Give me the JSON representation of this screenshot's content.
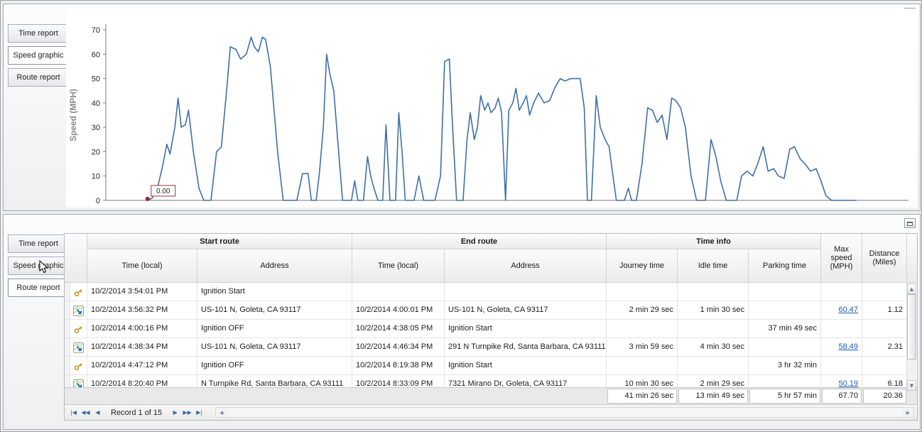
{
  "colors": {
    "chart_line": "#3E6FA8",
    "link": "#1D5BB8",
    "annotation_border": "#9C3434",
    "annotation_dot": "#8B2B2B",
    "key_icon_gold": "#C49A2C",
    "route_icon_green": "#7FA75B",
    "route_icon_blue": "#2E6FC0"
  },
  "icons": {
    "up_arrow": "▲",
    "down_arrow": "▼",
    "left_arrow": "◀",
    "right_arrow": "▶"
  },
  "top_panel": {
    "tabs": [
      {
        "label": "Time report"
      },
      {
        "label": "Speed graphic"
      },
      {
        "label": "Route report"
      }
    ],
    "selected_tab": "Speed graphic"
  },
  "chart_data": {
    "type": "line",
    "title": "",
    "xlabel": "",
    "ylabel": "Speed (MPH)",
    "ylim": [
      0,
      70
    ],
    "yticks": [
      0,
      10,
      20,
      30,
      40,
      50,
      60,
      70
    ],
    "grid": false,
    "legend": "none",
    "line_color": "#3E6FA8",
    "x_units": "fraction_of_plot_width (no x tick labels visible)",
    "annotation": {
      "label": "0.00",
      "x": 0.052,
      "y": 0
    },
    "points": [
      [
        0.052,
        0
      ],
      [
        0.058,
        1
      ],
      [
        0.065,
        6
      ],
      [
        0.07,
        13
      ],
      [
        0.076,
        23
      ],
      [
        0.08,
        19
      ],
      [
        0.086,
        30
      ],
      [
        0.09,
        42
      ],
      [
        0.094,
        30
      ],
      [
        0.099,
        31
      ],
      [
        0.103,
        37
      ],
      [
        0.109,
        20
      ],
      [
        0.116,
        5
      ],
      [
        0.122,
        0
      ],
      [
        0.131,
        0
      ],
      [
        0.138,
        20
      ],
      [
        0.144,
        22
      ],
      [
        0.151,
        47
      ],
      [
        0.155,
        63
      ],
      [
        0.162,
        62
      ],
      [
        0.168,
        58
      ],
      [
        0.175,
        60
      ],
      [
        0.181,
        67
      ],
      [
        0.185,
        63
      ],
      [
        0.19,
        61
      ],
      [
        0.195,
        67
      ],
      [
        0.199,
        66
      ],
      [
        0.205,
        55
      ],
      [
        0.214,
        20
      ],
      [
        0.221,
        0
      ],
      [
        0.238,
        0
      ],
      [
        0.245,
        11
      ],
      [
        0.252,
        11
      ],
      [
        0.256,
        0
      ],
      [
        0.262,
        0
      ],
      [
        0.266,
        11
      ],
      [
        0.271,
        30
      ],
      [
        0.275,
        60
      ],
      [
        0.279,
        52
      ],
      [
        0.284,
        45
      ],
      [
        0.29,
        20
      ],
      [
        0.295,
        0
      ],
      [
        0.306,
        0
      ],
      [
        0.31,
        8
      ],
      [
        0.314,
        0
      ],
      [
        0.321,
        0
      ],
      [
        0.326,
        18
      ],
      [
        0.33,
        10
      ],
      [
        0.334,
        5
      ],
      [
        0.339,
        0
      ],
      [
        0.345,
        0
      ],
      [
        0.349,
        31
      ],
      [
        0.354,
        0
      ],
      [
        0.361,
        0
      ],
      [
        0.365,
        36
      ],
      [
        0.369,
        20
      ],
      [
        0.373,
        0
      ],
      [
        0.384,
        0
      ],
      [
        0.39,
        10
      ],
      [
        0.396,
        0
      ],
      [
        0.41,
        0
      ],
      [
        0.417,
        10
      ],
      [
        0.422,
        57
      ],
      [
        0.428,
        58
      ],
      [
        0.432,
        30
      ],
      [
        0.437,
        0
      ],
      [
        0.445,
        0
      ],
      [
        0.45,
        25
      ],
      [
        0.454,
        36
      ],
      [
        0.459,
        25
      ],
      [
        0.463,
        30
      ],
      [
        0.467,
        43
      ],
      [
        0.472,
        37
      ],
      [
        0.476,
        40
      ],
      [
        0.48,
        36
      ],
      [
        0.485,
        38
      ],
      [
        0.489,
        42
      ],
      [
        0.493,
        36
      ],
      [
        0.498,
        0
      ],
      [
        0.502,
        37
      ],
      [
        0.507,
        40
      ],
      [
        0.511,
        46
      ],
      [
        0.515,
        37
      ],
      [
        0.52,
        40
      ],
      [
        0.524,
        43
      ],
      [
        0.528,
        35
      ],
      [
        0.533,
        40
      ],
      [
        0.539,
        44
      ],
      [
        0.546,
        40
      ],
      [
        0.553,
        41
      ],
      [
        0.559,
        46
      ],
      [
        0.566,
        50
      ],
      [
        0.572,
        49
      ],
      [
        0.579,
        50
      ],
      [
        0.585,
        50
      ],
      [
        0.591,
        50
      ],
      [
        0.596,
        38
      ],
      [
        0.6,
        0
      ],
      [
        0.605,
        0
      ],
      [
        0.611,
        43
      ],
      [
        0.616,
        30
      ],
      [
        0.622,
        25
      ],
      [
        0.627,
        22
      ],
      [
        0.631,
        12
      ],
      [
        0.636,
        0
      ],
      [
        0.646,
        0
      ],
      [
        0.651,
        5
      ],
      [
        0.655,
        0
      ],
      [
        0.661,
        0
      ],
      [
        0.668,
        15
      ],
      [
        0.675,
        38
      ],
      [
        0.681,
        37
      ],
      [
        0.687,
        32
      ],
      [
        0.693,
        35
      ],
      [
        0.699,
        25
      ],
      [
        0.705,
        42
      ],
      [
        0.71,
        41
      ],
      [
        0.716,
        38
      ],
      [
        0.722,
        30
      ],
      [
        0.729,
        10
      ],
      [
        0.736,
        0
      ],
      [
        0.747,
        0
      ],
      [
        0.754,
        25
      ],
      [
        0.76,
        18
      ],
      [
        0.766,
        8
      ],
      [
        0.773,
        0
      ],
      [
        0.786,
        0
      ],
      [
        0.792,
        10
      ],
      [
        0.799,
        12
      ],
      [
        0.806,
        10
      ],
      [
        0.812,
        15
      ],
      [
        0.819,
        22
      ],
      [
        0.825,
        12
      ],
      [
        0.832,
        13
      ],
      [
        0.838,
        10
      ],
      [
        0.845,
        9
      ],
      [
        0.852,
        21
      ],
      [
        0.858,
        22
      ],
      [
        0.865,
        17
      ],
      [
        0.871,
        15
      ],
      [
        0.878,
        12
      ],
      [
        0.885,
        13
      ],
      [
        0.891,
        8
      ],
      [
        0.897,
        2
      ],
      [
        0.904,
        0
      ],
      [
        0.935,
        0
      ]
    ]
  },
  "bottom_panel": {
    "tabs": [
      {
        "label": "Time report"
      },
      {
        "label": "Speed graphic"
      },
      {
        "label": "Route report"
      }
    ],
    "selected_tab": "Route report",
    "table": {
      "groups": [
        {
          "label": "Start route"
        },
        {
          "label": "End route"
        },
        {
          "label": "Time info"
        }
      ],
      "columns": [
        "Time (local)",
        "Address",
        "Time (local)",
        "Address",
        "Journey time",
        "Idle time",
        "Parking time",
        "Max speed (MPH)",
        "Distance (Miles)"
      ],
      "rows": [
        {
          "icon": "key",
          "cells": [
            "10/2/2014 3:54:01 PM",
            "Ignition Start",
            "",
            "",
            "",
            "",
            "",
            "",
            ""
          ]
        },
        {
          "icon": "route",
          "cells": [
            "10/2/2014 3:56:32 PM",
            "US-101 N, Goleta, CA 93117",
            "10/2/2014 4:00:01 PM",
            "US-101 N, Goleta, CA 93117",
            "2 min 29 sec",
            "1 min 30 sec",
            "",
            "60.47",
            "1.12"
          ]
        },
        {
          "icon": "key",
          "cells": [
            "10/2/2014 4:00:16 PM",
            "Ignition OFF",
            "10/2/2014 4:38:05 PM",
            "Ignition Start",
            "",
            "",
            "37 min 49 sec",
            "",
            ""
          ]
        },
        {
          "icon": "route",
          "cells": [
            "10/2/2014 4:38:34 PM",
            "US-101 N, Goleta, CA 93117",
            "10/2/2014 4:46:34 PM",
            "291 N Turnpike Rd, Santa Barbara, CA 93111",
            "3 min 59 sec",
            "4 min 30 sec",
            "",
            "58.49",
            "2.31"
          ]
        },
        {
          "icon": "key",
          "cells": [
            "10/2/2014 4:47:12 PM",
            "Ignition OFF",
            "10/2/2014 8:19:38 PM",
            "Ignition Start",
            "",
            "",
            "3 hr 32 min",
            "",
            ""
          ]
        },
        {
          "icon": "route",
          "cells": [
            "10/2/2014 8:20:40 PM",
            "N Turnpike Rd, Santa Barbara, CA 93111",
            "10/2/2014 8:33:09 PM",
            "7321 Mirano Dr, Goleta, CA 93117",
            "10 min 30 sec",
            "2 min 29 sec",
            "",
            "50.19",
            "6.18"
          ]
        }
      ],
      "summary": {
        "journey_time": "41 min 26 sec",
        "idle_time": "13 min 49 sec",
        "parking_time": "5 hr 57 min",
        "max_speed": "67.70",
        "distance": "20.36"
      }
    },
    "pager": {
      "record_label": "Record 1 of 15",
      "buttons_left": [
        "|◀",
        "◀◀",
        "◀"
      ],
      "buttons_right": [
        "▶",
        "▶▶",
        "▶|"
      ]
    }
  }
}
